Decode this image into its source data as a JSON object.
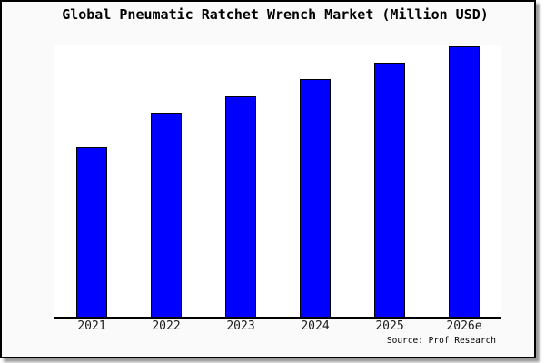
{
  "title": "Global Pneumatic Ratchet Wrench Market (Million USD)",
  "source": "Source: Prof Research",
  "colors": {
    "bar_fill": "#0000ff",
    "bar_edge": "#000000",
    "figure_background": "#fafafa",
    "plot_background": "#ffffff",
    "frame_border": "#000000",
    "shadow": "#999999"
  },
  "chart_data": {
    "type": "bar",
    "title": "Global Pneumatic Ratchet Wrench Market (Million USD)",
    "categories": [
      "2021",
      "2022",
      "2023",
      "2024",
      "2025",
      "2026e"
    ],
    "values_pct_of_max": [
      62.9,
      75.2,
      81.5,
      87.9,
      94.0,
      100
    ],
    "value_axis_note": "no y-axis, gridlines or value labels shown; values are bar heights relative to tallest bar (2026e = 100)",
    "xlabel": "",
    "ylabel": "",
    "legend": "none",
    "grid": false,
    "bar_color": "#0000ff",
    "bar_edge_color": "#000000"
  }
}
